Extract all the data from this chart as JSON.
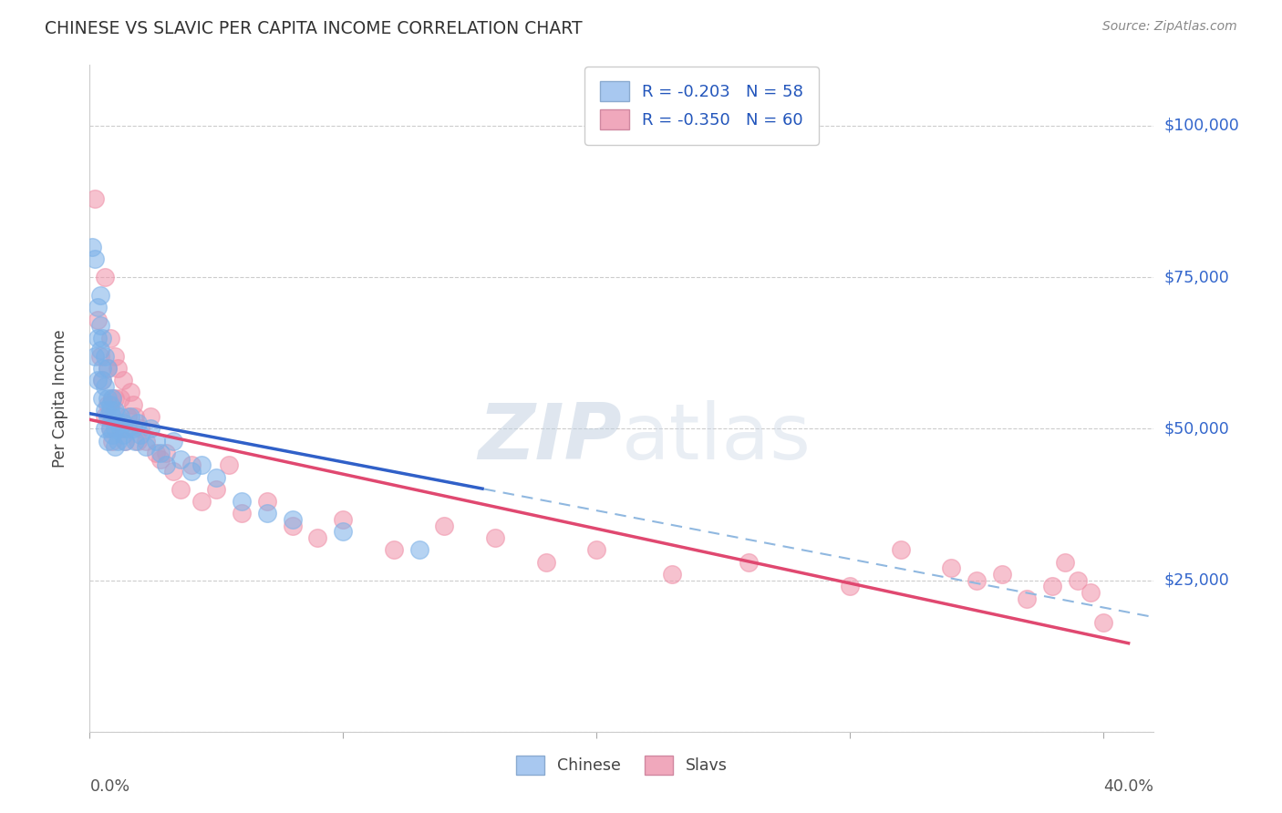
{
  "title": "CHINESE VS SLAVIC PER CAPITA INCOME CORRELATION CHART",
  "source": "Source: ZipAtlas.com",
  "ylabel": "Per Capita Income",
  "legend_R_N": [
    {
      "label": "R = -0.203   N = 58",
      "color": "#a8c8f0"
    },
    {
      "label": "R = -0.350   N = 60",
      "color": "#f0a8b8"
    }
  ],
  "legend_labels": [
    "Chinese",
    "Slavs"
  ],
  "chinese_color": "#7ab0e8",
  "slavic_color": "#f090a8",
  "chinese_line_color": "#3060c8",
  "slavic_line_color": "#e04870",
  "dashed_line_color": "#90b8e0",
  "background_color": "#ffffff",
  "grid_color": "#cccccc",
  "xmin": 0.0,
  "xmax": 0.42,
  "ymin": 0,
  "ymax": 110000,
  "chinese_x": [
    0.001,
    0.002,
    0.002,
    0.003,
    0.003,
    0.003,
    0.004,
    0.004,
    0.004,
    0.005,
    0.005,
    0.005,
    0.005,
    0.006,
    0.006,
    0.006,
    0.006,
    0.007,
    0.007,
    0.007,
    0.007,
    0.008,
    0.008,
    0.008,
    0.009,
    0.009,
    0.009,
    0.01,
    0.01,
    0.01,
    0.011,
    0.011,
    0.012,
    0.012,
    0.013,
    0.013,
    0.014,
    0.015,
    0.016,
    0.017,
    0.018,
    0.019,
    0.02,
    0.022,
    0.024,
    0.026,
    0.028,
    0.03,
    0.033,
    0.036,
    0.04,
    0.044,
    0.05,
    0.06,
    0.07,
    0.08,
    0.1,
    0.13
  ],
  "chinese_y": [
    80000,
    78000,
    62000,
    65000,
    70000,
    58000,
    63000,
    67000,
    72000,
    60000,
    55000,
    58000,
    65000,
    62000,
    57000,
    53000,
    50000,
    55000,
    60000,
    52000,
    48000,
    54000,
    50000,
    53000,
    52000,
    49000,
    55000,
    50000,
    53000,
    47000,
    51000,
    48000,
    50000,
    52000,
    49000,
    51000,
    48000,
    50000,
    52000,
    50000,
    48000,
    51000,
    49000,
    47000,
    50000,
    48000,
    46000,
    44000,
    48000,
    45000,
    43000,
    44000,
    42000,
    38000,
    36000,
    35000,
    33000,
    30000
  ],
  "slavic_x": [
    0.002,
    0.003,
    0.004,
    0.005,
    0.006,
    0.006,
    0.007,
    0.007,
    0.008,
    0.008,
    0.009,
    0.009,
    0.01,
    0.01,
    0.011,
    0.011,
    0.012,
    0.013,
    0.013,
    0.014,
    0.015,
    0.016,
    0.017,
    0.018,
    0.019,
    0.02,
    0.022,
    0.024,
    0.026,
    0.028,
    0.03,
    0.033,
    0.036,
    0.04,
    0.044,
    0.05,
    0.055,
    0.06,
    0.07,
    0.08,
    0.09,
    0.1,
    0.12,
    0.14,
    0.16,
    0.18,
    0.2,
    0.23,
    0.26,
    0.3,
    0.32,
    0.34,
    0.35,
    0.36,
    0.37,
    0.38,
    0.385,
    0.39,
    0.395,
    0.4
  ],
  "slavic_y": [
    88000,
    68000,
    62000,
    58000,
    75000,
    52000,
    60000,
    54000,
    65000,
    50000,
    55000,
    48000,
    62000,
    55000,
    60000,
    52000,
    55000,
    50000,
    58000,
    48000,
    52000,
    56000,
    54000,
    52000,
    48000,
    50000,
    48000,
    52000,
    46000,
    45000,
    46000,
    43000,
    40000,
    44000,
    38000,
    40000,
    44000,
    36000,
    38000,
    34000,
    32000,
    35000,
    30000,
    34000,
    32000,
    28000,
    30000,
    26000,
    28000,
    24000,
    30000,
    27000,
    25000,
    26000,
    22000,
    24000,
    28000,
    25000,
    23000,
    18000
  ],
  "chinese_line_x": [
    0.001,
    0.155
  ],
  "slavic_line_x": [
    0.001,
    0.41
  ],
  "dashed_line_x": [
    0.05,
    0.42
  ],
  "chinese_line_intercept": 52500,
  "chinese_line_slope": -145000,
  "slavic_line_intercept": 51000,
  "slavic_line_slope": -82000
}
